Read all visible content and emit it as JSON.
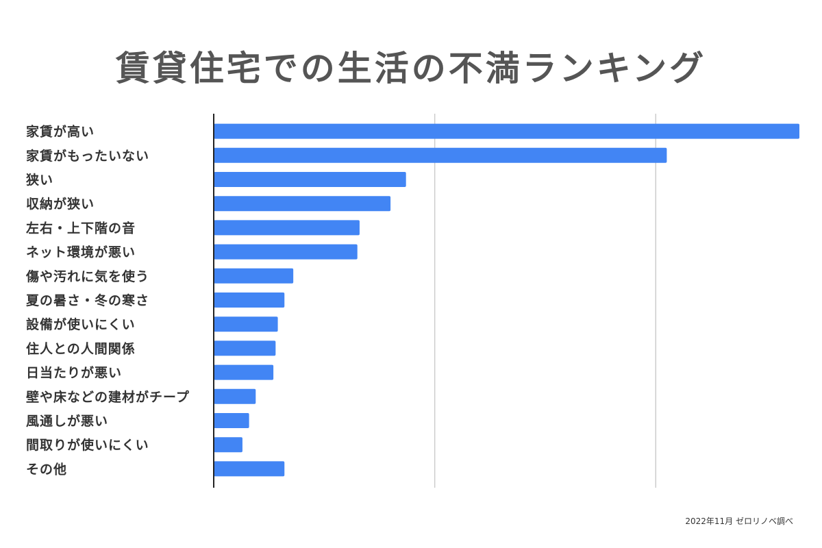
{
  "chart_data": {
    "type": "bar",
    "orientation": "horizontal",
    "title": "賃貸住宅での生活の不満ランキング",
    "categories": [
      "家賃が高い",
      "家賃がもったいない",
      "狭い",
      "収納が狭い",
      "左右・上下階の音",
      "ネット環境が悪い",
      "傷や汚れに気を使う",
      "夏の暑さ・冬の寒さ",
      "設備が使いにくい",
      "住人との人間関係",
      "日当たりが悪い",
      "壁や床などの建材がチープ",
      "風通しが悪い",
      "間取りが使いにくい",
      "その他"
    ],
    "values": [
      265,
      205,
      87,
      80,
      66,
      65,
      36,
      32,
      29,
      28,
      27,
      19,
      16,
      13,
      32
    ],
    "xlim": [
      0,
      265
    ],
    "grid_interval": 100,
    "grid": true,
    "legend": "none",
    "bar_color": "#4285F4"
  },
  "source_note": "2022年11月 ゼロリノベ調べ"
}
